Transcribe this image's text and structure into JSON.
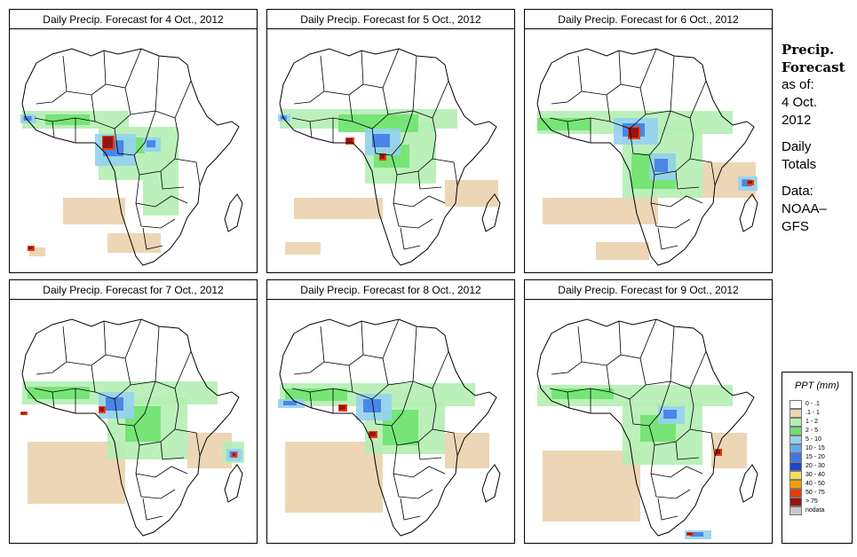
{
  "panels": [
    {
      "title": "Daily Precip. Forecast for  4 Oct., 2012"
    },
    {
      "title": "Daily Precip. Forecast for  5 Oct., 2012"
    },
    {
      "title": "Daily Precip. Forecast for  6 Oct., 2012"
    },
    {
      "title": "Daily Precip. Forecast for  7 Oct., 2012"
    },
    {
      "title": "Daily Precip. Forecast for  8 Oct., 2012"
    },
    {
      "title": "Daily Precip. Forecast for  9 Oct., 2012"
    }
  ],
  "sidebar": {
    "heading_1": "Precip.",
    "heading_2": "Forecast",
    "as_of": "as of:",
    "date_1": "4 Oct.",
    "date_2": "2012",
    "daily_1": "Daily",
    "daily_2": "Totals",
    "data_1": "Data:",
    "data_2": "NOAA–",
    "data_3": "GFS"
  },
  "legend": {
    "title": "PPT (mm)",
    "classes": [
      {
        "label": "0 - .1",
        "color": "#ffffff"
      },
      {
        "label": ".1 - 1",
        "color": "#ecd6b6"
      },
      {
        "label": "1 - 2",
        "color": "#b4eeb4"
      },
      {
        "label": "2 - 5",
        "color": "#6fe36f"
      },
      {
        "label": "5 - 10",
        "color": "#96d2f0"
      },
      {
        "label": "10 - 15",
        "color": "#64aaf0"
      },
      {
        "label": "15 - 20",
        "color": "#3c78e6"
      },
      {
        "label": "20 - 30",
        "color": "#1e46c8"
      },
      {
        "label": "30 - 40",
        "color": "#f5dc5a"
      },
      {
        "label": "40 - 50",
        "color": "#f5a000"
      },
      {
        "label": "50 - 75",
        "color": "#e63c00"
      },
      {
        "label": "> 75",
        "color": "#961414"
      },
      {
        "label": "nodata",
        "color": "#c8c8c8"
      }
    ]
  },
  "colors": {
    "dry": "#ecd6b6",
    "light_green": "#b4eeb4",
    "green": "#6fe36f",
    "light_blue": "#96d2f0",
    "blue": "#3c78e6",
    "dark_blue": "#1e46c8",
    "orange": "#f5a000",
    "red": "#e63c00",
    "dark_red": "#961414",
    "border": "#000000"
  }
}
